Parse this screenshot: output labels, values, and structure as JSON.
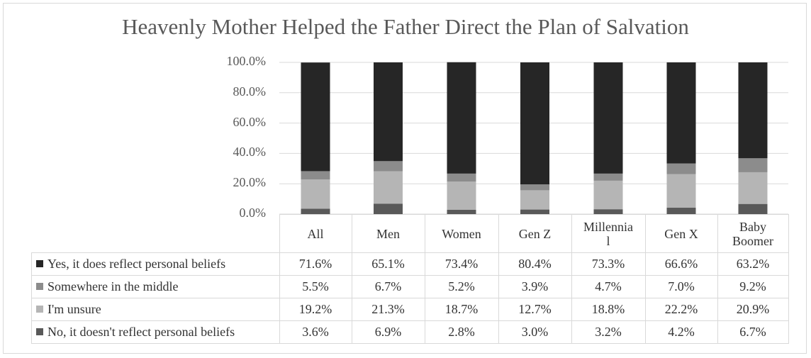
{
  "colors": {
    "Yes, it does reflect personal beliefs": "#262626",
    "Somewhere in the middle": "#8c8c8c",
    "I'm unsure": "#b5b5b5",
    "No, it doesn't reflect personal beliefs": "#595959"
  },
  "chart_data": {
    "type": "bar",
    "stacked": true,
    "title": "Heavenly Mother Helped the Father Direct the Plan of Salvation",
    "categories": [
      "All",
      "Men",
      "Women",
      "Gen Z",
      "Millennial",
      "Gen X",
      "Baby Boomer"
    ],
    "category_labels": [
      "All",
      "Men",
      "Women",
      "Gen Z",
      "Millennia\nl",
      "Gen X",
      "Baby\nBoomer"
    ],
    "ylim": [
      0,
      100
    ],
    "yticks": [
      "0.0%",
      "20.0%",
      "40.0%",
      "60.0%",
      "80.0%",
      "100.0%"
    ],
    "grid": true,
    "legend_placement": "data-table",
    "series": [
      {
        "name": "Yes, it does reflect personal beliefs",
        "values": [
          71.6,
          65.1,
          73.4,
          80.4,
          73.3,
          66.6,
          63.2
        ],
        "labels": [
          "71.6%",
          "65.1%",
          "73.4%",
          "80.4%",
          "73.3%",
          "66.6%",
          "63.2%"
        ]
      },
      {
        "name": "Somewhere in the middle",
        "values": [
          5.5,
          6.7,
          5.2,
          3.9,
          4.7,
          7.0,
          9.2
        ],
        "labels": [
          "5.5%",
          "6.7%",
          "5.2%",
          "3.9%",
          "4.7%",
          "7.0%",
          "9.2%"
        ]
      },
      {
        "name": "I'm unsure",
        "values": [
          19.2,
          21.3,
          18.7,
          12.7,
          18.8,
          22.2,
          20.9
        ],
        "labels": [
          "19.2%",
          "21.3%",
          "18.7%",
          "12.7%",
          "18.8%",
          "22.2%",
          "20.9%"
        ]
      },
      {
        "name": "No, it doesn't reflect personal beliefs",
        "values": [
          3.6,
          6.9,
          2.8,
          3.0,
          3.2,
          4.2,
          6.7
        ],
        "labels": [
          "3.6%",
          "6.9%",
          "2.8%",
          "3.0%",
          "3.2%",
          "4.2%",
          "6.7%"
        ]
      }
    ]
  }
}
